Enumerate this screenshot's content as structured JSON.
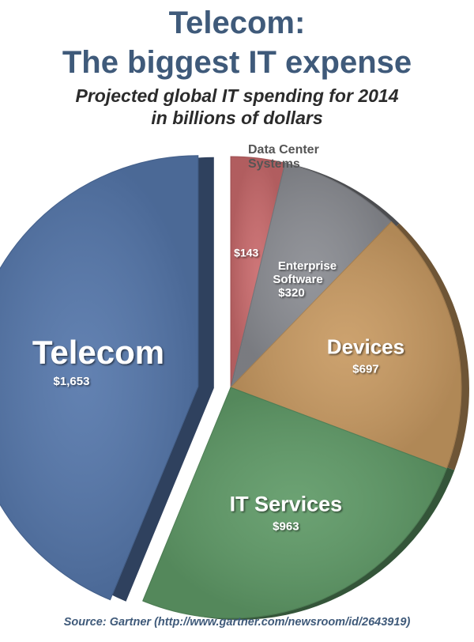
{
  "header": {
    "title_line1": "Telecom:",
    "title_line2": "The biggest IT expense",
    "subtitle_line1": "Projected global IT spending for 2014",
    "subtitle_line2": "in billions of dollars"
  },
  "chart_data": {
    "type": "pie",
    "title": "Telecom: The biggest IT expense",
    "subtitle": "Projected global IT spending for 2014 in billions of dollars",
    "slices": [
      {
        "label": "Data Center Systems",
        "value_label": "$143",
        "value": 143,
        "color": "#c96a6c"
      },
      {
        "label": "Enterprise Software",
        "value_label": "$320",
        "value": 320,
        "color": "#8a8c92"
      },
      {
        "label": "Devices",
        "value_label": "$697",
        "value": 697,
        "color": "#c89a62"
      },
      {
        "label": "IT Services",
        "value_label": "$963",
        "value": 963,
        "color": "#5f9a67"
      },
      {
        "label": "Telecom",
        "value_label": "$1,653",
        "value": 1653,
        "color": "#5577ab",
        "exploded": true
      }
    ]
  },
  "footer": {
    "source": "Source: Gartner (http://www.gartner.com/newsroom/id/2643919)"
  }
}
